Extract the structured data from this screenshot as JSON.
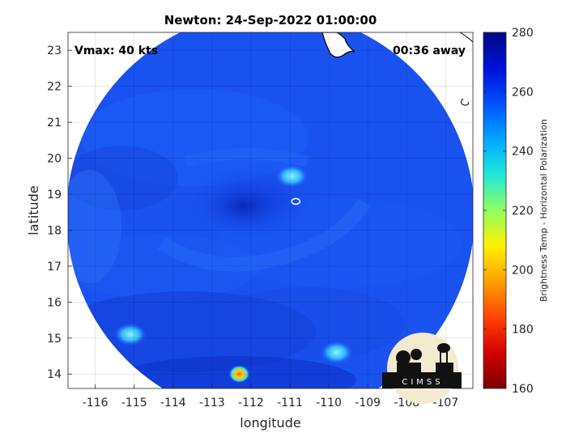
{
  "title": "Newton: 24-Sep-2022 01:00:00",
  "vmax_label": "Vmax: 40 kts",
  "away_label": "00:36 away",
  "map": {
    "xlabel": "longitude",
    "ylabel": "latitude",
    "xlim": [
      -116.7,
      -106.3
    ],
    "ylim": [
      13.6,
      23.5
    ],
    "xticks": [
      -116,
      -115,
      -114,
      -113,
      -112,
      -111,
      -110,
      -109,
      -108,
      -107
    ],
    "yticks": [
      14,
      15,
      16,
      17,
      18,
      19,
      20,
      21,
      22,
      23
    ],
    "swath_center": [
      -111.0,
      18.6
    ],
    "storm_center": [
      -110.85,
      18.8
    ],
    "grid": true
  },
  "colorbar": {
    "label": "Brightness Temp - Horizontal Polarization",
    "min": 160,
    "max": 280,
    "ticks": [
      160,
      180,
      200,
      220,
      240,
      260,
      280
    ],
    "colors": [
      "#7a0000",
      "#d40000",
      "#ff4400",
      "#ffa000",
      "#fff000",
      "#90ff60",
      "#20e8d8",
      "#00a8ff",
      "#0050ff",
      "#0010d8",
      "#000a80"
    ]
  },
  "features": [
    {
      "name": "warm-spot",
      "lon": -112.3,
      "lat": 14.0,
      "tb": 195
    },
    {
      "name": "convective-spot",
      "lon": -110.95,
      "lat": 19.5,
      "tb": 238
    },
    {
      "name": "convective-spot",
      "lon": -109.8,
      "lat": 14.6,
      "tb": 240
    },
    {
      "name": "convective-spot",
      "lon": -115.1,
      "lat": 15.1,
      "tb": 244
    }
  ],
  "logo": {
    "text": "CIMSS"
  }
}
